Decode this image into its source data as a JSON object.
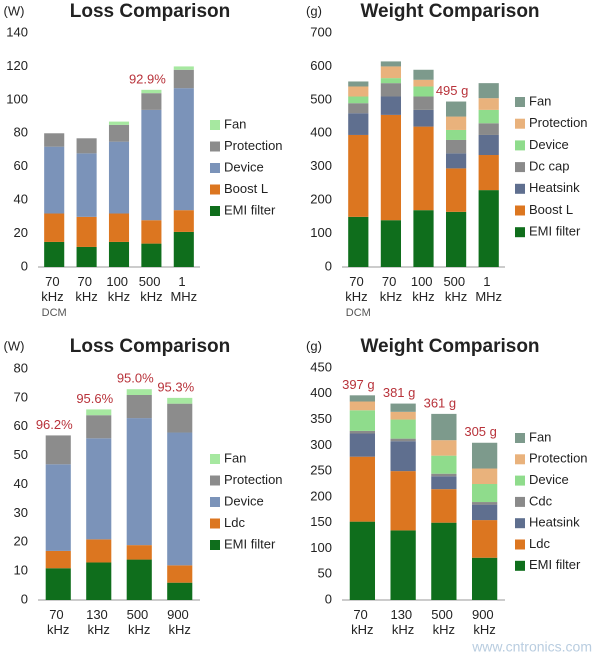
{
  "chart_data": [
    {
      "type": "bar",
      "stacked": true,
      "title": "Loss Comparison",
      "y_unit": "(W)",
      "categories": [
        "70 kHz DCM",
        "70 kHz",
        "100 kHz",
        "500 kHz",
        "1 MHz"
      ],
      "series": [
        {
          "name": "EMI filter",
          "color": "#0f6e1c",
          "values": [
            15,
            12,
            15,
            14,
            21
          ]
        },
        {
          "name": "Boost L",
          "color": "#dc7620",
          "values": [
            17,
            18,
            17,
            14,
            13
          ]
        },
        {
          "name": "Device",
          "color": "#7b93b9",
          "values": [
            40,
            38,
            43,
            66,
            73
          ]
        },
        {
          "name": "Protection",
          "color": "#8c8c8c",
          "values": [
            8,
            9,
            10,
            10,
            11
          ]
        },
        {
          "name": "Fan",
          "color": "#a6e8a0",
          "values": [
            0,
            0,
            2,
            2,
            2
          ]
        }
      ],
      "annotations": [
        null,
        null,
        null,
        "92.9%",
        null
      ],
      "ylim": [
        0,
        140
      ],
      "yticks": [
        0,
        20,
        40,
        60,
        80,
        100,
        120,
        140
      ],
      "grid": false
    },
    {
      "type": "bar",
      "stacked": true,
      "title": "Weight Comparison",
      "y_unit": "(g)",
      "categories": [
        "70 kHz DCM",
        "70 kHz",
        "100 kHz",
        "500 kHz",
        "1 MHz"
      ],
      "series": [
        {
          "name": "EMI filter",
          "color": "#0f6e1c",
          "values": [
            150,
            140,
            170,
            165,
            230
          ]
        },
        {
          "name": "Boost L",
          "color": "#dc7620",
          "values": [
            245,
            315,
            250,
            130,
            105
          ]
        },
        {
          "name": "Heatsink",
          "color": "#5f6f8f",
          "values": [
            65,
            55,
            50,
            45,
            60
          ]
        },
        {
          "name": "Dc cap",
          "color": "#8a8a8a",
          "values": [
            30,
            40,
            40,
            40,
            35
          ]
        },
        {
          "name": "Device",
          "color": "#8fdc8c",
          "values": [
            20,
            15,
            30,
            30,
            40
          ]
        },
        {
          "name": "Protection",
          "color": "#e9b27c",
          "values": [
            30,
            35,
            20,
            40,
            35
          ]
        },
        {
          "name": "Fan",
          "color": "#7d9a8c",
          "values": [
            15,
            15,
            30,
            45,
            45
          ]
        }
      ],
      "annotations": [
        null,
        null,
        null,
        "495 g",
        null
      ],
      "ylim": [
        0,
        700
      ],
      "yticks": [
        0,
        100,
        200,
        300,
        400,
        500,
        600,
        700
      ],
      "grid": false
    },
    {
      "type": "bar",
      "stacked": true,
      "title": "Loss Comparison",
      "y_unit": "(W)",
      "categories": [
        "70 kHz",
        "130 kHz",
        "500 kHz",
        "900 kHz"
      ],
      "series": [
        {
          "name": "EMI filter",
          "color": "#0f6e1c",
          "values": [
            11,
            13,
            14,
            6
          ]
        },
        {
          "name": "Ldc",
          "color": "#dc7620",
          "values": [
            6,
            8,
            5,
            6
          ]
        },
        {
          "name": "Device",
          "color": "#7b93b9",
          "values": [
            30,
            35,
            44,
            46
          ]
        },
        {
          "name": "Protection",
          "color": "#8c8c8c",
          "values": [
            10,
            8,
            8,
            10
          ]
        },
        {
          "name": "Fan",
          "color": "#a6e8a0",
          "values": [
            0,
            2,
            2,
            2
          ]
        }
      ],
      "annotations": [
        "96.2%",
        "95.6%",
        "95.0%",
        "95.3%"
      ],
      "ylim": [
        0,
        80
      ],
      "yticks": [
        0,
        10,
        20,
        30,
        40,
        50,
        60,
        70,
        80
      ],
      "grid": false
    },
    {
      "type": "bar",
      "stacked": true,
      "title": "Weight Comparison",
      "y_unit": "(g)",
      "categories": [
        "70 kHz",
        "130 kHz",
        "500 kHz",
        "900 kHz"
      ],
      "series": [
        {
          "name": "EMI filter",
          "color": "#0f6e1c",
          "values": [
            152,
            135,
            150,
            82
          ]
        },
        {
          "name": "Ldc",
          "color": "#dc7620",
          "values": [
            126,
            115,
            65,
            73
          ]
        },
        {
          "name": "Heatsink",
          "color": "#5f6f8f",
          "values": [
            45,
            58,
            25,
            30
          ]
        },
        {
          "name": "Cdc",
          "color": "#8a8a8a",
          "values": [
            5,
            5,
            5,
            5
          ]
        },
        {
          "name": "Device",
          "color": "#8fdc8c",
          "values": [
            40,
            37,
            35,
            35
          ]
        },
        {
          "name": "Protection",
          "color": "#e9b27c",
          "values": [
            17,
            15,
            30,
            30
          ]
        },
        {
          "name": "Fan",
          "color": "#7d9a8c",
          "values": [
            12,
            16,
            51,
            50
          ]
        }
      ],
      "annotations": [
        "397 g",
        "381 g",
        "361 g",
        "305 g"
      ],
      "ylim": [
        0,
        450
      ],
      "yticks": [
        0,
        50,
        100,
        150,
        200,
        250,
        300,
        350,
        400,
        450
      ],
      "grid": false
    }
  ],
  "watermark": "www.cntronics.com"
}
